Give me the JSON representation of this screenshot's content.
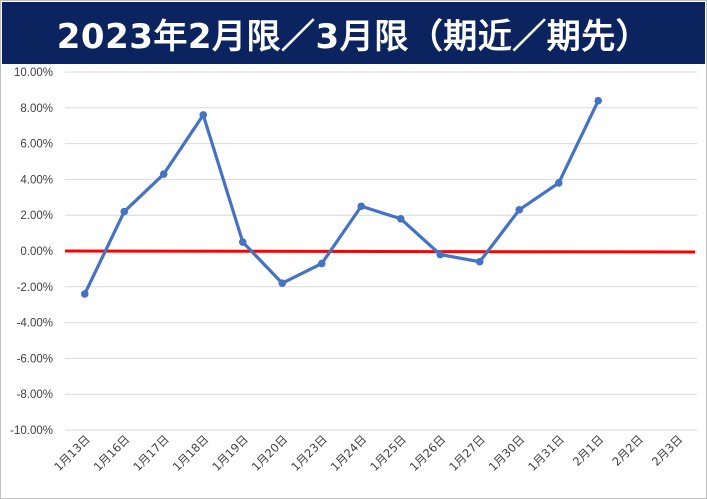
{
  "title": "2023年2月限／3月限（期近／期先）",
  "chart_data": {
    "type": "line",
    "title": "2023年2月限／3月限（期近／期先）",
    "xlabel": "",
    "ylabel": "",
    "categories": [
      "1月13日",
      "1月16日",
      "1月17日",
      "1月18日",
      "1月19日",
      "1月20日",
      "1月23日",
      "1月24日",
      "1月25日",
      "1月26日",
      "1月27日",
      "1月30日",
      "1月31日",
      "2月1日",
      "2月2日",
      "2月3日"
    ],
    "series": [
      {
        "name": "",
        "color": "#4472c4",
        "values": [
          -2.4,
          2.2,
          4.3,
          7.6,
          0.5,
          -1.8,
          -0.7,
          2.5,
          1.8,
          -0.2,
          -0.6,
          2.3,
          3.8,
          8.4,
          null,
          null
        ]
      }
    ],
    "reference_line": {
      "value": 0.0,
      "color": "#ff0000"
    },
    "ylim": [
      -10,
      10
    ],
    "yticks": [
      "10.00%",
      "8.00%",
      "6.00%",
      "4.00%",
      "2.00%",
      "0.00%",
      "-2.00%",
      "-4.00%",
      "-6.00%",
      "-8.00%",
      "-10.00%"
    ],
    "ytick_values": [
      10,
      8,
      6,
      4,
      2,
      0,
      -2,
      -4,
      -6,
      -8,
      -10
    ],
    "grid": true,
    "legend": "none"
  }
}
